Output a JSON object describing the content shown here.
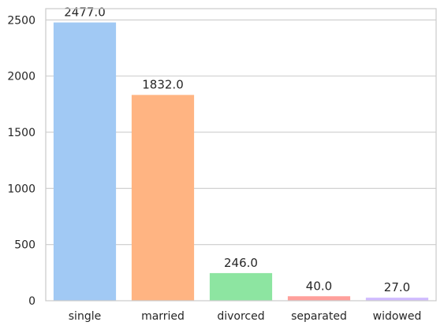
{
  "chart_data": {
    "type": "bar",
    "categories": [
      "single",
      "married",
      "divorced",
      "separated",
      "widowed"
    ],
    "values": [
      2477,
      1832,
      246,
      40,
      27
    ],
    "value_labels": [
      "2477.0",
      "1832.0",
      "246.0",
      "40.0",
      "27.0"
    ],
    "colors": [
      "#a1c9f4",
      "#ffb482",
      "#8de5a1",
      "#ff9f9b",
      "#d0bbff"
    ],
    "yticks": [
      0,
      500,
      1000,
      1500,
      2000,
      2500
    ],
    "ylim": [
      0,
      2600
    ],
    "title": "",
    "xlabel": "",
    "ylabel": "",
    "grid": "horizontal",
    "style": {
      "grid_color": "#cccccc",
      "frame_color": "#cccccc",
      "text_color": "#262626"
    }
  }
}
